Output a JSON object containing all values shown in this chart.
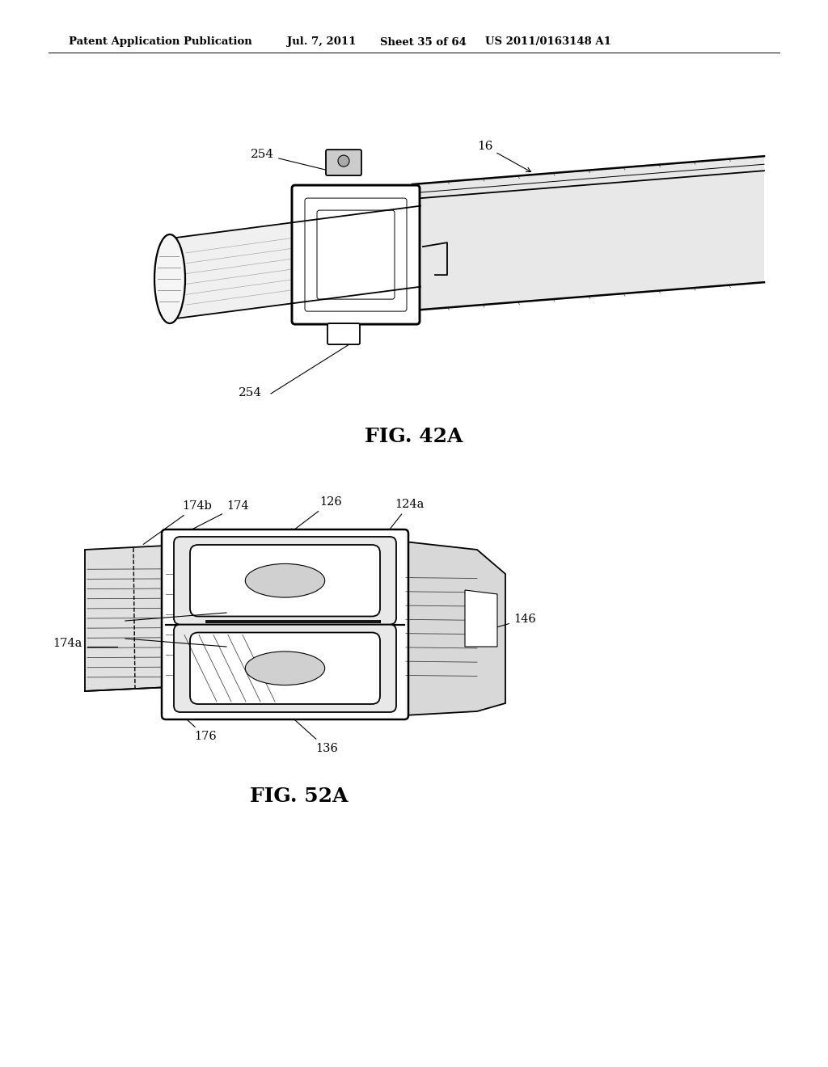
{
  "background_color": "#ffffff",
  "header_text": "Patent Application Publication",
  "header_date": "Jul. 7, 2011",
  "header_sheet": "Sheet 35 of 64",
  "header_patent": "US 2011/0163148 A1",
  "fig1_label": "FIG. 42A",
  "fig2_label": "FIG. 52A"
}
